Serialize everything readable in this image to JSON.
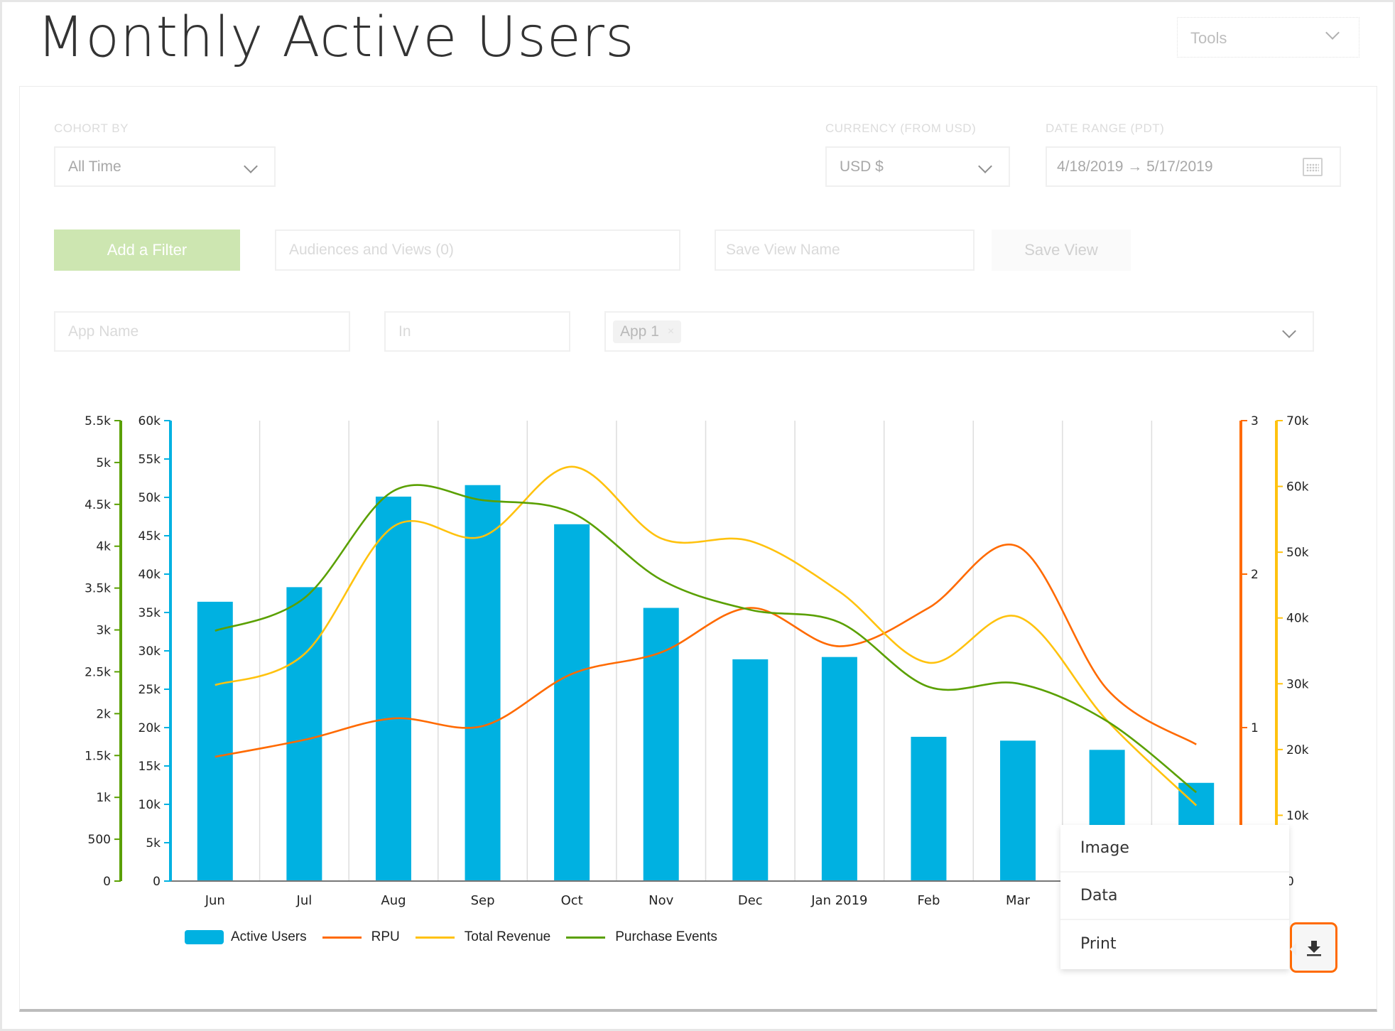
{
  "page": {
    "title": "Monthly Active Users"
  },
  "tools": {
    "label": "Tools"
  },
  "filters": {
    "cohort": {
      "label": "COHORT BY",
      "value": "All Time"
    },
    "currency": {
      "label": "CURRENCY (FROM USD)",
      "value": "USD $"
    },
    "date_range": {
      "label": "DATE RANGE (PDT)",
      "value": "4/18/2019 → 5/17/2019"
    },
    "add_filter_label": "Add a Filter",
    "audiences_placeholder": "Audiences and Views (0)",
    "save_view_name_placeholder": "Save View Name",
    "save_view_label": "Save View",
    "app_name_placeholder": "App Name",
    "operator_placeholder": "In",
    "selected_chip": "App 1",
    "chip_remove": "×"
  },
  "export_menu": {
    "items": [
      "Image",
      "Data",
      "Print"
    ]
  },
  "colors": {
    "active_users": "#00b1e1",
    "rpu": "#ff6a00",
    "total_revenue": "#ffc20e",
    "purchase_events": "#5aa000",
    "accent": "#ff6a00"
  },
  "chart_data": {
    "type": "bar",
    "title": "",
    "categories": [
      "Jun",
      "Jul",
      "Aug",
      "Sep",
      "Oct",
      "Nov",
      "Dec",
      "Jan 2019",
      "Feb",
      "Mar",
      "",
      ""
    ],
    "series": [
      {
        "name": "Active Users",
        "type": "bar",
        "axis": "active",
        "values": [
          36400,
          38300,
          50100,
          51600,
          46500,
          35600,
          28900,
          29200,
          18800,
          18300,
          17100,
          12800
        ]
      },
      {
        "name": "RPU",
        "type": "line",
        "axis": "rpu",
        "values": [
          0.81,
          0.92,
          1.06,
          1.01,
          1.35,
          1.49,
          1.78,
          1.53,
          1.78,
          2.18,
          1.25,
          0.89
        ]
      },
      {
        "name": "Total Revenue",
        "type": "line",
        "axis": "revenue",
        "values": [
          29800,
          34500,
          53900,
          52400,
          63000,
          52100,
          51700,
          44000,
          33200,
          40200,
          24400,
          11500
        ]
      },
      {
        "name": "Purchase Events",
        "type": "line",
        "axis": "purchase",
        "values": [
          2990,
          3380,
          4660,
          4550,
          4400,
          3600,
          3240,
          3090,
          2320,
          2360,
          1910,
          1060
        ]
      }
    ],
    "axes": {
      "purchase": {
        "side": "left-outer",
        "ylim": [
          0,
          5500
        ],
        "ticks": [
          "0",
          "500",
          "1k",
          "1.5k",
          "2k",
          "2.5k",
          "3k",
          "3.5k",
          "4k",
          "4.5k",
          "5k",
          "5.5k"
        ]
      },
      "active": {
        "side": "left-inner",
        "ylim": [
          0,
          60000
        ],
        "ticks": [
          "0",
          "5k",
          "10k",
          "15k",
          "20k",
          "25k",
          "30k",
          "35k",
          "40k",
          "45k",
          "50k",
          "55k",
          "60k"
        ]
      },
      "rpu": {
        "side": "right-inner",
        "ylim": [
          0,
          3
        ],
        "ticks": [
          "0",
          "1",
          "2",
          "3"
        ]
      },
      "revenue": {
        "side": "right-outer",
        "ylim": [
          0,
          70000
        ],
        "ticks": [
          "0",
          "10k",
          "20k",
          "30k",
          "40k",
          "50k",
          "60k",
          "70k"
        ]
      }
    },
    "xlabel": "",
    "ylabel": "",
    "grid": "vertical",
    "legend": "bottom-left"
  }
}
